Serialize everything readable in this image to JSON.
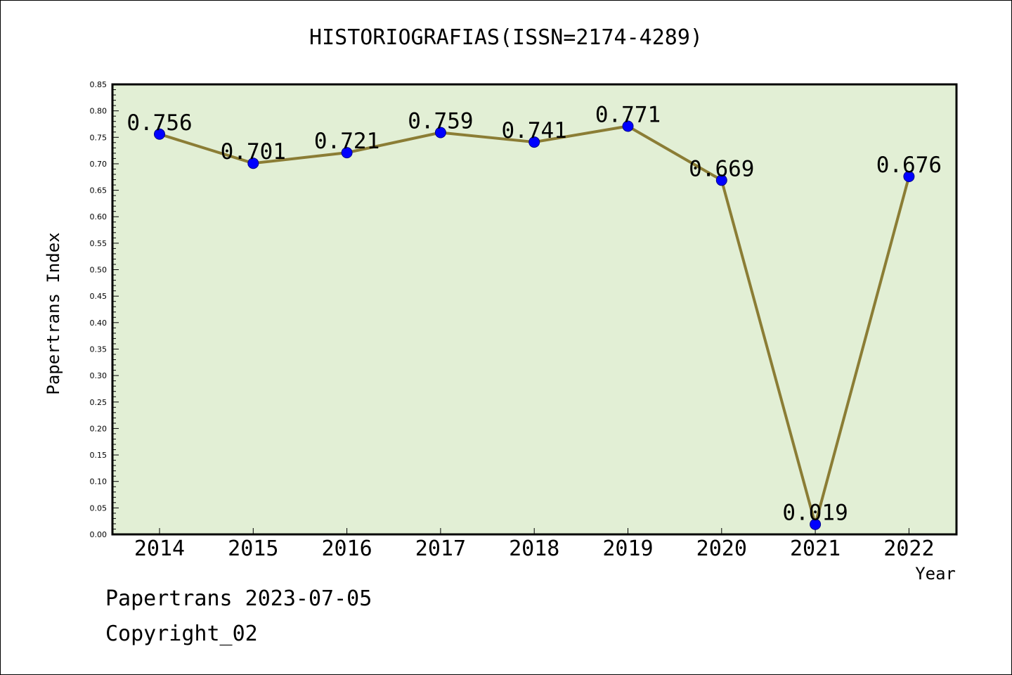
{
  "header": {
    "title": "HISTORIOGRAFIAS(ISSN=2174-4289)"
  },
  "footer": {
    "line1": "Papertrans 2023-07-05",
    "line2": "Copyright_02"
  },
  "chart_data": {
    "type": "line",
    "title": "HISTORIOGRAFIAS(ISSN=2174-4289)",
    "xlabel": "Year",
    "ylabel": "Papertrans Index",
    "categories": [
      "2014",
      "2015",
      "2016",
      "2017",
      "2018",
      "2019",
      "2020",
      "2021",
      "2022"
    ],
    "series": [
      {
        "values": [
          0.756,
          0.701,
          0.721,
          0.759,
          0.741,
          0.771,
          0.669,
          0.019,
          0.676
        ]
      }
    ],
    "data_labels": [
      "0.756",
      "0.701",
      "0.721",
      "0.759",
      "0.741",
      "0.771",
      "0.669",
      "0.019",
      "0.676"
    ],
    "ylim": [
      0.0,
      0.85
    ],
    "yticks": [
      "0.00",
      "0.05",
      "0.10",
      "0.15",
      "0.20",
      "0.25",
      "0.30",
      "0.35",
      "0.40",
      "0.45",
      "0.50",
      "0.55",
      "0.60",
      "0.65",
      "0.70",
      "0.75",
      "0.80",
      "0.85"
    ],
    "grid": false,
    "colors": {
      "plot_bg": "#e2efd5",
      "line": "#8b7d35",
      "marker": "#0000ff"
    }
  }
}
